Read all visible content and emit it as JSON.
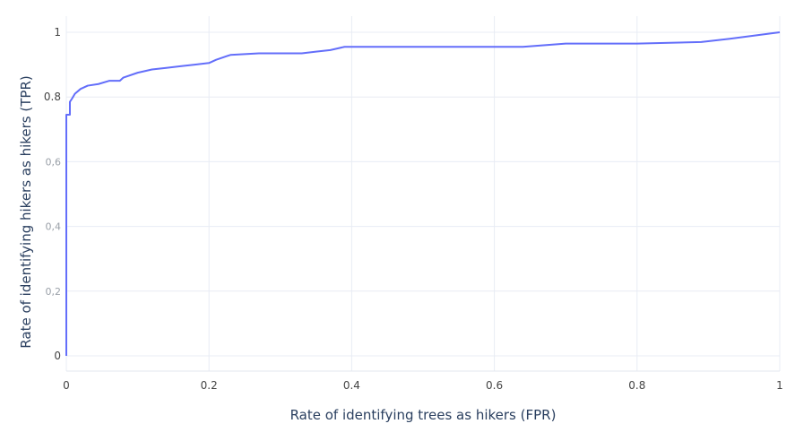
{
  "chart_data": {
    "type": "line",
    "title": "",
    "xlabel": "Rate of identifying trees as hikers (FPR)",
    "ylabel": "Rate of identifying hikers as hikers (TPR)",
    "xlim": [
      0,
      1
    ],
    "ylim": [
      0,
      1
    ],
    "grid": true,
    "legend": "none",
    "x_ticks": [
      "0",
      "0.2",
      "0.4",
      "0.6",
      "0.8",
      "1"
    ],
    "y_ticks": [
      "0",
      "0,2",
      "0,4",
      "0,6",
      "0.8",
      "1"
    ],
    "line_color": "#636efa",
    "grid_color": "#e8ecf4",
    "x": [
      0,
      0.0,
      0.005,
      0.005,
      0.008,
      0.012,
      0.02,
      0.03,
      0.045,
      0.06,
      0.075,
      0.08,
      0.1,
      0.12,
      0.14,
      0.16,
      0.18,
      0.2,
      0.21,
      0.23,
      0.27,
      0.3,
      0.33,
      0.35,
      0.37,
      0.39,
      0.4,
      0.5,
      0.6,
      0.64,
      0.7,
      0.8,
      0.89,
      0.93,
      1.0
    ],
    "y": [
      0,
      0.745,
      0.745,
      0.785,
      0.795,
      0.81,
      0.825,
      0.835,
      0.84,
      0.85,
      0.85,
      0.86,
      0.875,
      0.885,
      0.89,
      0.895,
      0.9,
      0.905,
      0.915,
      0.93,
      0.935,
      0.935,
      0.935,
      0.94,
      0.945,
      0.955,
      0.955,
      0.955,
      0.955,
      0.955,
      0.965,
      0.965,
      0.97,
      0.98,
      1.0
    ]
  }
}
